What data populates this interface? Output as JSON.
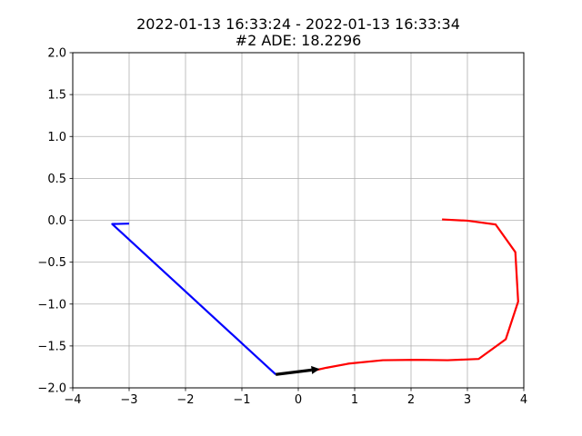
{
  "title": {
    "line1": "2022-01-13 16:33:24 - 2022-01-13 16:33:34",
    "line2": "#2 ADE: 18.2296"
  },
  "chart_data": {
    "type": "line",
    "title": "2022-01-13 16:33:24 - 2022-01-13 16:33:34\n#2 ADE: 18.2296",
    "xlabel": "",
    "ylabel": "",
    "xlim": [
      -4,
      4
    ],
    "ylim": [
      -2,
      2
    ],
    "xticks": [
      -4,
      -3,
      -2,
      -1,
      0,
      1,
      2,
      3,
      4
    ],
    "yticks": [
      -2.0,
      -1.5,
      -1.0,
      -0.5,
      0.0,
      0.5,
      1.0,
      1.5,
      2.0
    ],
    "xtick_labels": [
      "−4",
      "−3",
      "−2",
      "−1",
      "0",
      "1",
      "2",
      "3",
      "4"
    ],
    "ytick_labels": [
      "−2.0",
      "−1.5",
      "−1.0",
      "−0.5",
      "0.0",
      "0.5",
      "1.0",
      "1.5",
      "2.0"
    ],
    "grid": true,
    "series": [
      {
        "color": "#0000ff",
        "x": [
          -3.0,
          -3.3,
          -0.4
        ],
        "y": [
          -0.04,
          -0.045,
          -1.84
        ]
      },
      {
        "color": "#ff0000",
        "x": [
          0.3,
          0.5,
          0.9,
          1.5,
          2.1,
          2.65,
          3.2,
          3.68,
          3.9,
          3.85,
          3.5,
          3.0,
          2.55
        ],
        "y": [
          -1.79,
          -1.76,
          -1.71,
          -1.67,
          -1.665,
          -1.67,
          -1.655,
          -1.42,
          -0.97,
          -0.38,
          -0.05,
          -0.005,
          0.01
        ]
      }
    ],
    "arrow": {
      "color": "#000000",
      "from": [
        -0.4,
        -1.84
      ],
      "to": [
        0.38,
        -1.775
      ]
    }
  }
}
